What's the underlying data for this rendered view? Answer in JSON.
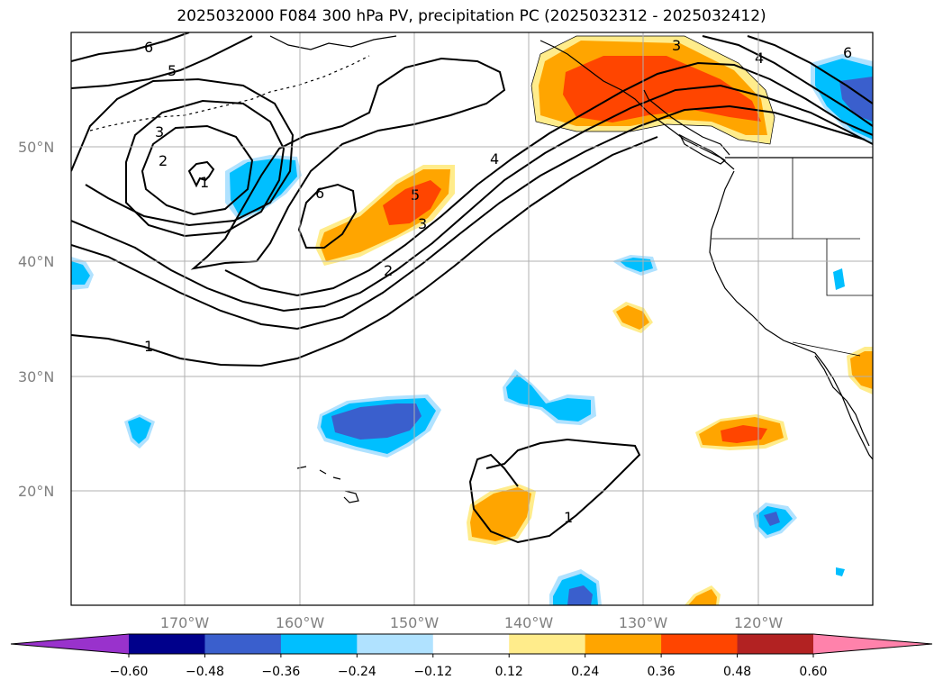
{
  "title": "2025032000 F084 300 hPa PV, precipitation PC (2025032312 - 2025032412)",
  "lon_ticks": [
    "170°W",
    "160°W",
    "150°W",
    "140°W",
    "130°W",
    "120°W"
  ],
  "lat_ticks": [
    "50°N",
    "40°N",
    "30°N",
    "20°N"
  ],
  "colorbar": {
    "ticks": [
      "−0.60",
      "−0.48",
      "−0.36",
      "−0.24",
      "−0.12",
      "0.12",
      "0.24",
      "0.36",
      "0.48",
      "0.60"
    ],
    "colors": [
      "#9932cc",
      "#00008b",
      "#3a5fcd",
      "#00bfff",
      "#b0e2ff",
      "#ffffff",
      "#ffec8b",
      "#ffa500",
      "#ff4500",
      "#b22222",
      "#ff82ab"
    ]
  },
  "pv_contour_labels": [
    "6",
    "5",
    "3",
    "2",
    "1",
    "6",
    "5",
    "3",
    "2",
    "4",
    "3",
    "4",
    "6",
    "1",
    "1"
  ]
}
